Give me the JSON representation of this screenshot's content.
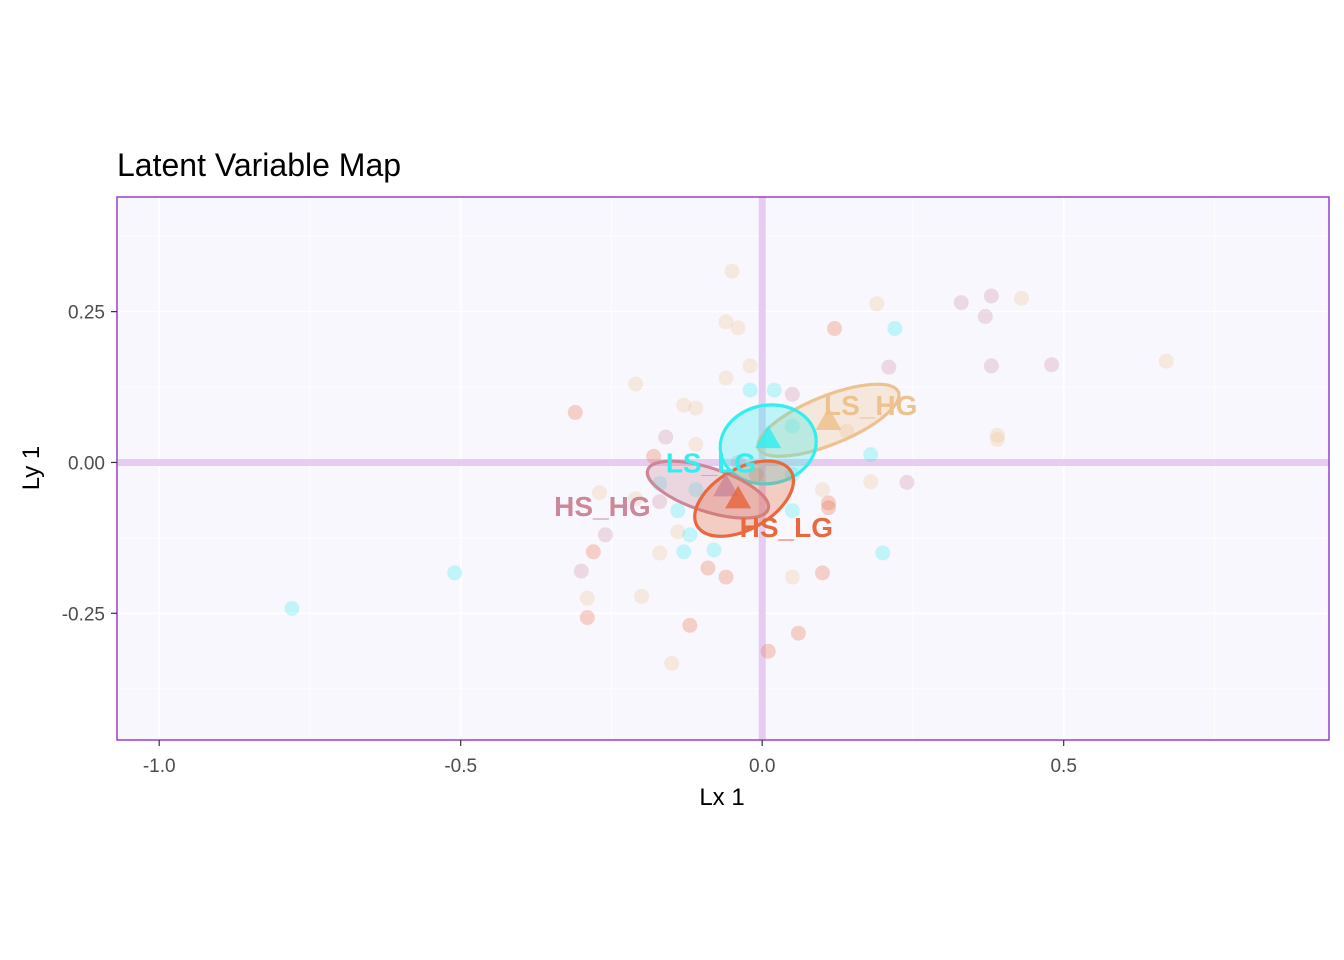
{
  "chart_data": {
    "type": "scatter",
    "title": "Latent Variable Map",
    "xlabel": "Lx 1",
    "ylabel": "Ly 1",
    "xlim": [
      -1.07,
      0.94
    ],
    "ylim": [
      -0.46,
      0.44
    ],
    "x_ticks": [
      -1.0,
      -0.5,
      0.0,
      0.5
    ],
    "x_tick_labels": [
      "-1.0",
      "-0.5",
      "0.0",
      "0.5"
    ],
    "y_ticks": [
      -0.25,
      0.0,
      0.25
    ],
    "y_tick_labels": [
      "-0.25",
      "0.00",
      "0.25"
    ],
    "grid": true,
    "legend": "none",
    "colors": {
      "panel_bg": "#f8f7fe",
      "panel_border": "#9a3fd0",
      "zero_line": "#e5ccf0",
      "grid": "#ffffff"
    },
    "groups": [
      {
        "name": "LS_HG",
        "color": "#edc28e",
        "centroid": [
          0.11,
          0.07
        ],
        "ellipse": {
          "center": [
            0.11,
            0.07
          ],
          "rx": 0.125,
          "ry": 0.04,
          "angle_deg": -22
        },
        "label_at": [
          0.18,
          0.095
        ],
        "points": [
          [
            -0.05,
            0.317
          ],
          [
            -0.06,
            0.233
          ],
          [
            -0.04,
            0.223
          ],
          [
            -0.02,
            0.16
          ],
          [
            -0.06,
            0.14
          ],
          [
            -0.21,
            0.13
          ],
          [
            -0.13,
            0.095
          ],
          [
            -0.11,
            0.09
          ],
          [
            -0.11,
            0.03
          ],
          [
            0.19,
            0.263
          ],
          [
            0.43,
            0.272
          ],
          [
            0.67,
            0.168
          ],
          [
            0.39,
            0.045
          ],
          [
            0.39,
            0.038
          ],
          [
            0.14,
            0.052
          ],
          [
            0.1,
            -0.045
          ],
          [
            0.18,
            -0.032
          ],
          [
            0.05,
            -0.19
          ],
          [
            -0.27,
            -0.05
          ],
          [
            -0.29,
            -0.225
          ],
          [
            -0.2,
            -0.222
          ],
          [
            -0.15,
            -0.333
          ],
          [
            -0.17,
            -0.15
          ],
          [
            -0.21,
            -0.06
          ],
          [
            -0.14,
            -0.115
          ]
        ]
      },
      {
        "name": "LS_LG",
        "color": "#33eeee",
        "centroid": [
          0.01,
          0.04
        ],
        "ellipse": {
          "center": [
            0.01,
            0.03
          ],
          "rx": 0.08,
          "ry": 0.065,
          "angle_deg": -10
        },
        "label_at": [
          -0.085,
          0.0
        ],
        "points": [
          [
            -0.78,
            -0.242
          ],
          [
            -0.51,
            -0.183
          ],
          [
            0.22,
            0.222
          ],
          [
            -0.02,
            0.12
          ],
          [
            0.02,
            0.12
          ],
          [
            0.18,
            0.013
          ],
          [
            0.2,
            -0.15
          ],
          [
            -0.08,
            -0.145
          ],
          [
            -0.13,
            -0.148
          ],
          [
            -0.12,
            -0.12
          ],
          [
            -0.14,
            -0.08
          ],
          [
            -0.17,
            -0.035
          ],
          [
            0.05,
            0.06
          ],
          [
            0.05,
            -0.02
          ],
          [
            0.05,
            -0.08
          ],
          [
            -0.11,
            -0.045
          ]
        ]
      },
      {
        "name": "HS_HG",
        "color": "#cc8899",
        "centroid": [
          -0.06,
          -0.04
        ],
        "ellipse": {
          "center": [
            -0.09,
            -0.045
          ],
          "rx": 0.105,
          "ry": 0.036,
          "angle_deg": 18
        },
        "label_at": [
          -0.265,
          -0.072
        ],
        "points": [
          [
            0.33,
            0.265
          ],
          [
            0.38,
            0.276
          ],
          [
            0.37,
            0.242
          ],
          [
            0.48,
            0.162
          ],
          [
            0.38,
            0.16
          ],
          [
            0.21,
            0.158
          ],
          [
            0.05,
            0.113
          ],
          [
            -0.16,
            0.042
          ],
          [
            -0.04,
            0.0
          ],
          [
            0.24,
            -0.033
          ],
          [
            -0.3,
            -0.18
          ],
          [
            -0.26,
            -0.12
          ],
          [
            -0.17,
            -0.065
          ]
        ]
      },
      {
        "name": "HS_LG",
        "color": "#e8693e",
        "centroid": [
          -0.04,
          -0.06
        ],
        "ellipse": {
          "center": [
            -0.03,
            -0.06
          ],
          "rx": 0.09,
          "ry": 0.05,
          "angle_deg": -30
        },
        "label_at": [
          0.04,
          -0.107
        ],
        "points": [
          [
            -0.31,
            0.083
          ],
          [
            0.12,
            0.222
          ],
          [
            -0.18,
            0.01
          ],
          [
            0.11,
            -0.067
          ],
          [
            0.11,
            -0.075
          ],
          [
            -0.29,
            -0.257
          ],
          [
            -0.28,
            -0.148
          ],
          [
            -0.06,
            -0.19
          ],
          [
            -0.09,
            -0.175
          ],
          [
            -0.12,
            -0.27
          ],
          [
            0.1,
            -0.183
          ],
          [
            0.06,
            -0.283
          ],
          [
            0.01,
            -0.313
          ],
          [
            -0.01,
            -0.02
          ]
        ]
      }
    ]
  }
}
